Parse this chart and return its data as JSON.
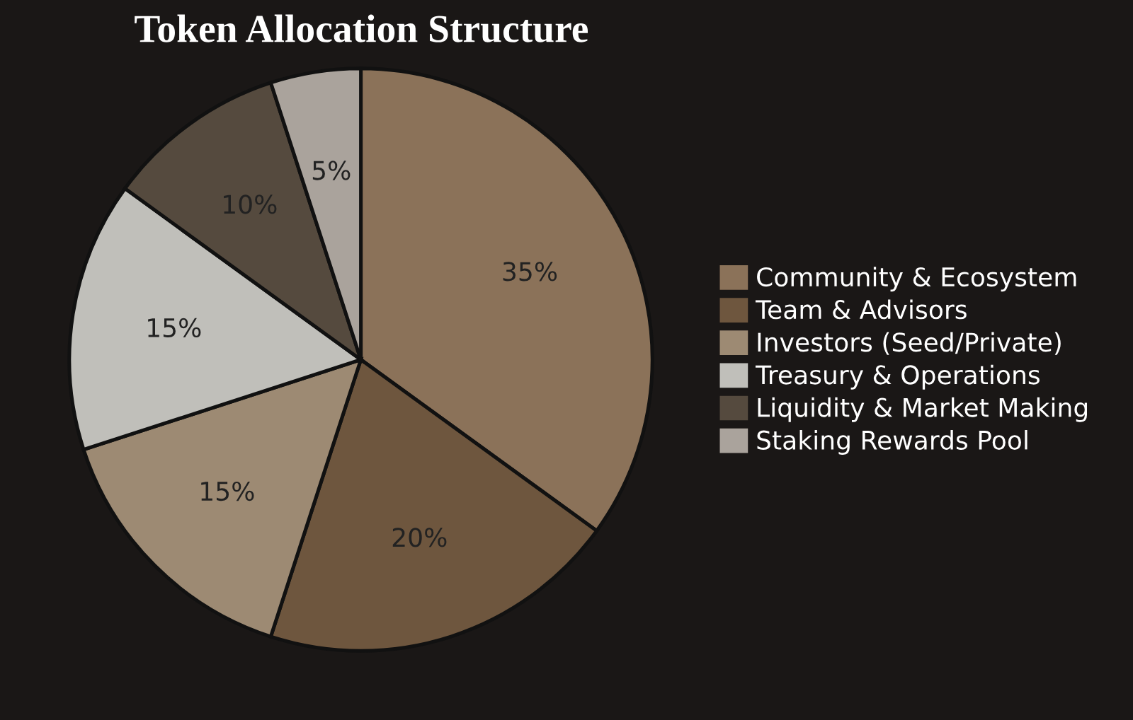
{
  "chart_data": {
    "type": "pie",
    "title": "Token Allocation Structure",
    "categories": [
      "Community & Ecosystem",
      "Team & Advisors",
      "Investors (Seed/Private)",
      "Treasury & Operations",
      "Liquidity & Market Making",
      "Staking Rewards Pool"
    ],
    "values": [
      35,
      20,
      15,
      15,
      10,
      5
    ],
    "colors": [
      "#8b7259",
      "#6e563e",
      "#9d8a73",
      "#c0bfba",
      "#554a3e",
      "#aaa39c"
    ],
    "value_labels": [
      "35%",
      "20%",
      "15%",
      "15%",
      "10%",
      "5%"
    ],
    "legend": "right"
  }
}
